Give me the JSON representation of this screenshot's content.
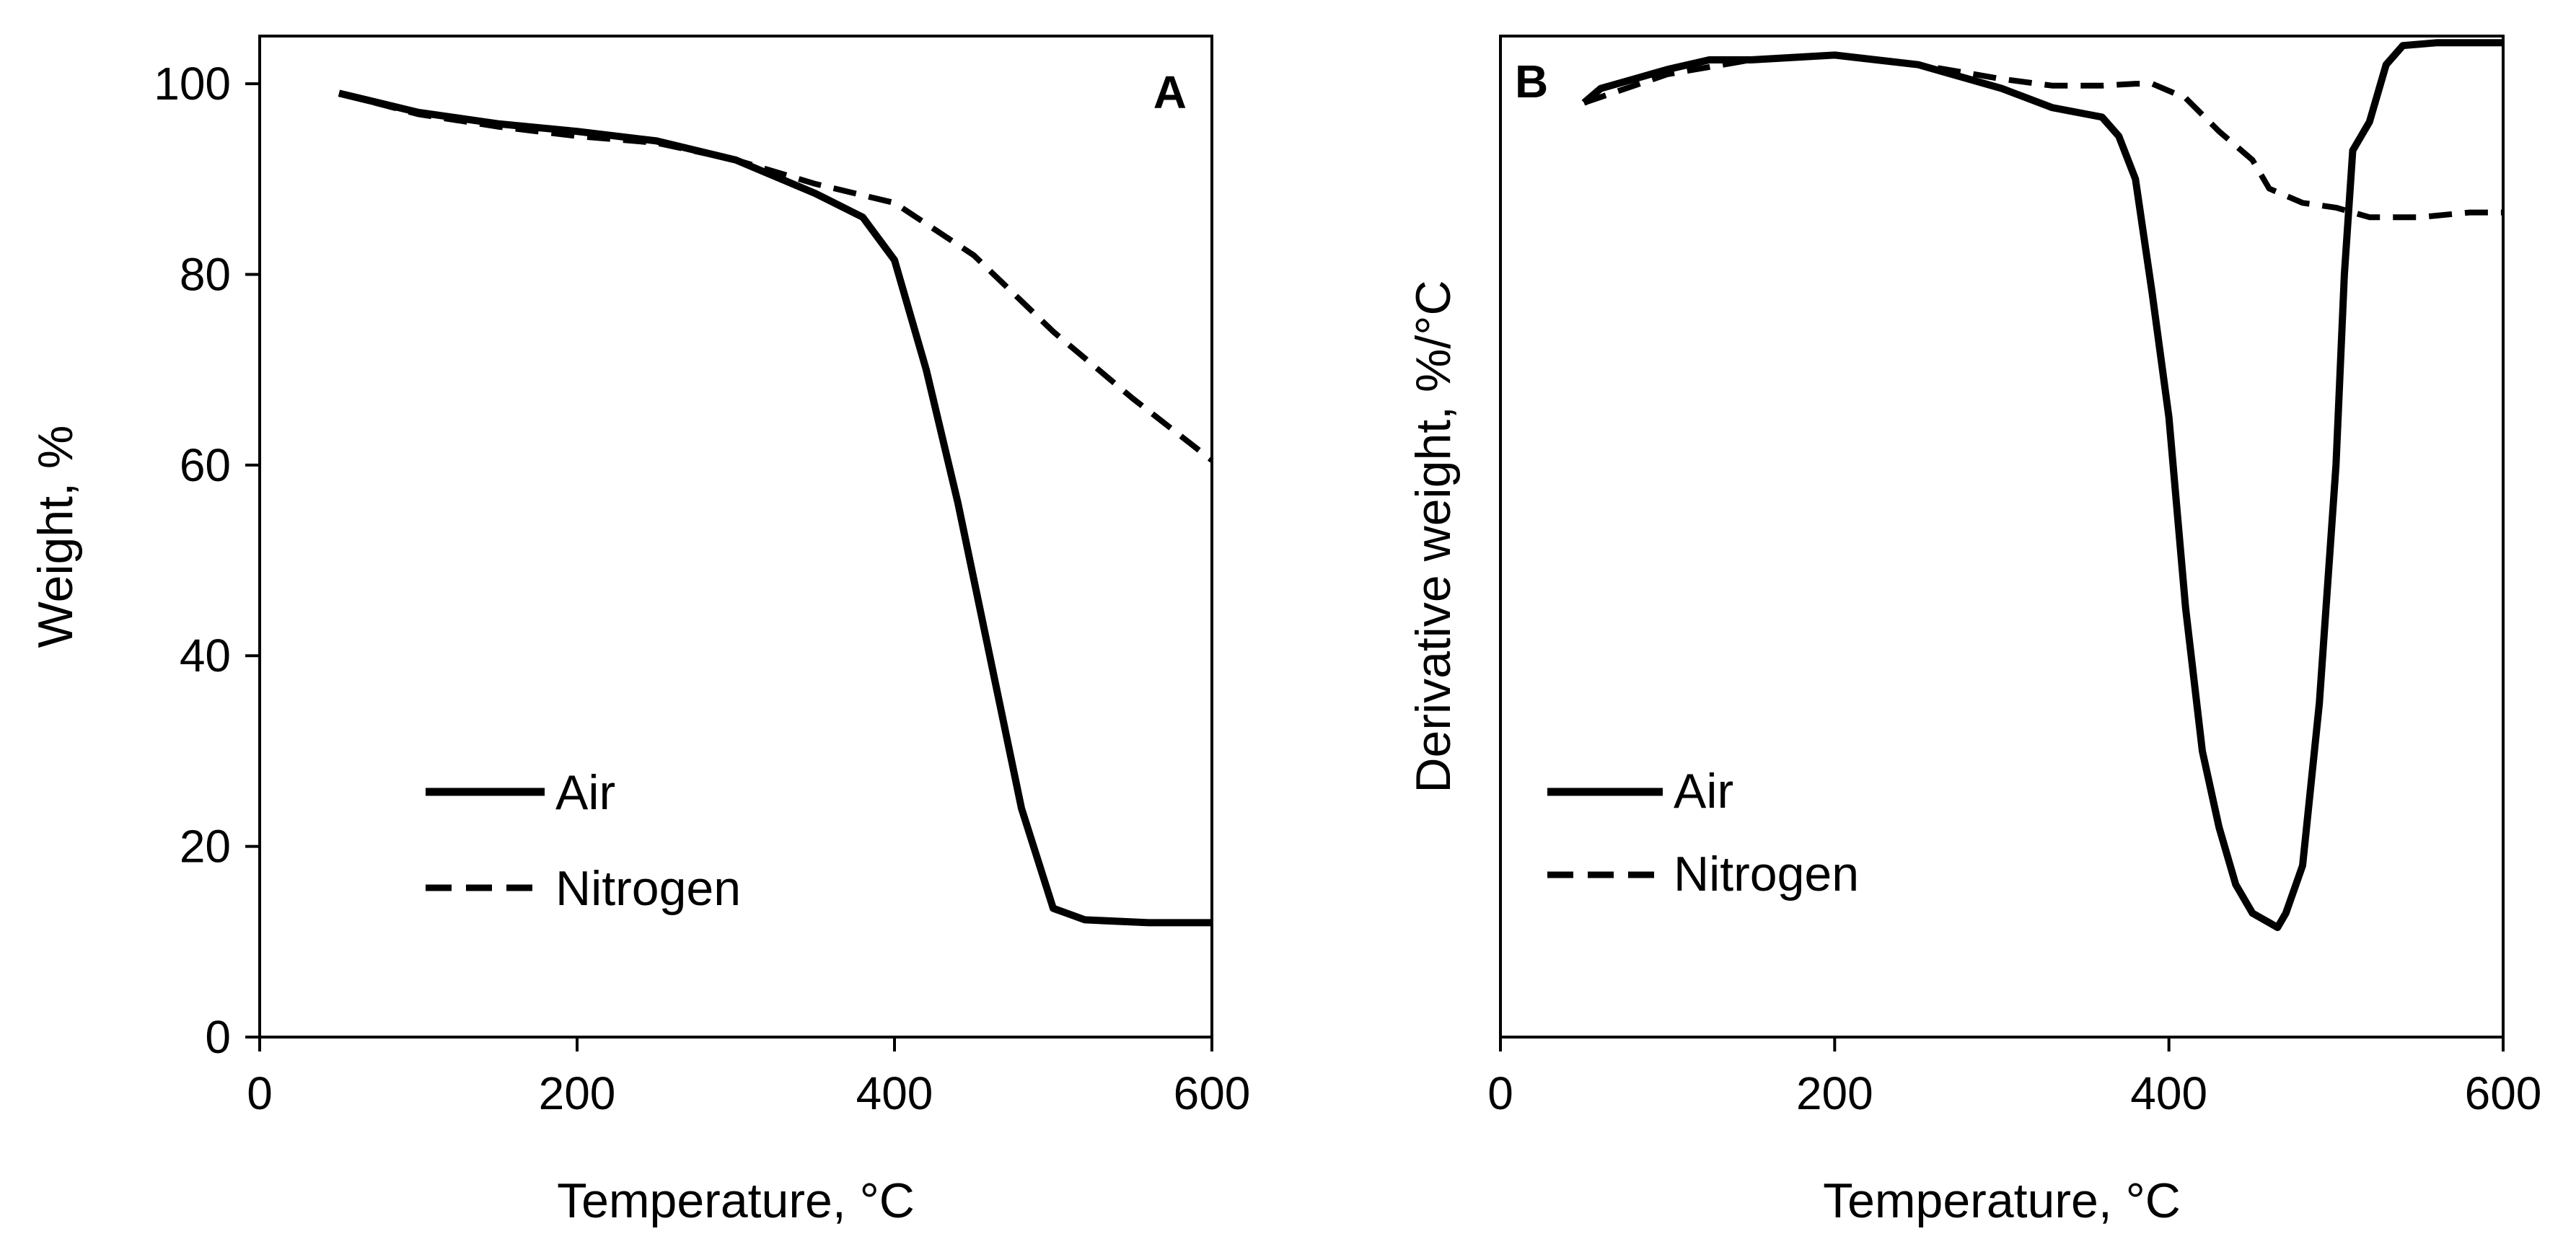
{
  "chart_data": [
    {
      "type": "line",
      "panel_label": "A",
      "title": "",
      "xlabel": "Temperature, °C",
      "ylabel": "Weight, %",
      "xlim": [
        0,
        600
      ],
      "ylim": [
        0,
        105
      ],
      "xticks": [
        0,
        200,
        400,
        600
      ],
      "yticks": [
        0,
        20,
        40,
        60,
        80,
        100
      ],
      "legend_position": "lower-left",
      "series": [
        {
          "name": "Air",
          "style": "solid",
          "x": [
            50,
            100,
            150,
            200,
            250,
            300,
            350,
            380,
            400,
            420,
            440,
            460,
            480,
            500,
            520,
            560,
            600
          ],
          "y": [
            99,
            97,
            95.8,
            95,
            94,
            92,
            88.5,
            86,
            81.5,
            70,
            56,
            40,
            24,
            13.5,
            12.3,
            12,
            12
          ]
        },
        {
          "name": "Nitrogen",
          "style": "dashed",
          "x": [
            50,
            100,
            150,
            200,
            250,
            300,
            350,
            400,
            450,
            500,
            550,
            600
          ],
          "y": [
            99,
            96.8,
            95.5,
            94.5,
            93.8,
            92,
            89.5,
            87.5,
            82,
            74,
            67,
            60.5
          ]
        }
      ]
    },
    {
      "type": "line",
      "panel_label": "B",
      "title": "",
      "xlabel": "Temperature, °C",
      "ylabel": "Derivative weight, %/°C",
      "xlim": [
        0,
        600
      ],
      "ylim": [
        0,
        105
      ],
      "xticks": [
        0,
        200,
        400,
        600
      ],
      "yticks": [],
      "legend_position": "lower-left",
      "series": [
        {
          "name": "Air",
          "style": "solid",
          "x": [
            50,
            60,
            80,
            100,
            125,
            150,
            200,
            250,
            300,
            330,
            360,
            370,
            380,
            390,
            400,
            410,
            420,
            430,
            440,
            450,
            460,
            465,
            470,
            480,
            490,
            500,
            505,
            510,
            520,
            530,
            540,
            560,
            600
          ],
          "y": [
            98,
            99.5,
            100.5,
            101.5,
            102.5,
            102.5,
            103,
            102,
            99.5,
            97.5,
            96.5,
            94.5,
            90,
            78,
            65,
            45,
            30,
            22,
            16,
            13,
            12,
            11.5,
            13,
            18,
            35,
            60,
            80,
            93,
            96,
            102,
            104,
            104.3,
            104.3
          ]
        },
        {
          "name": "Nitrogen",
          "style": "dashed",
          "x": [
            50,
            100,
            150,
            200,
            250,
            300,
            330,
            360,
            380,
            390,
            410,
            430,
            450,
            460,
            480,
            500,
            520,
            550,
            580,
            600
          ],
          "y": [
            98,
            101,
            102.5,
            103,
            102,
            100.5,
            99.8,
            99.8,
            100,
            100,
            98.5,
            95,
            92,
            89,
            87.5,
            87,
            86,
            86,
            86.5,
            86.5
          ]
        }
      ]
    }
  ]
}
